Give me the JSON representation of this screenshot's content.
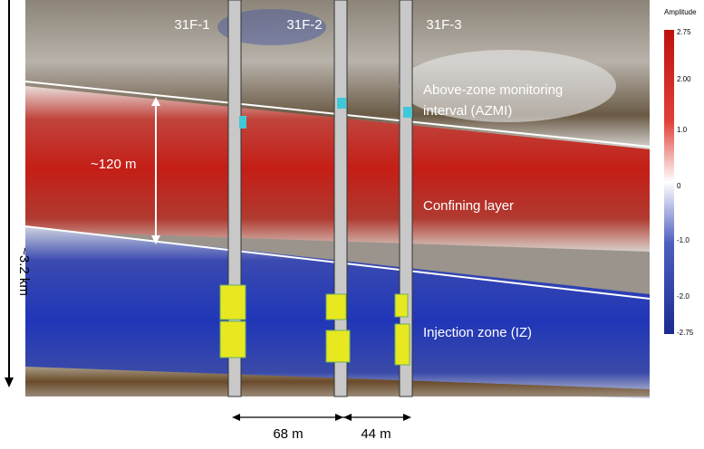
{
  "wells": [
    "31F-1",
    "31F-2",
    "31F-3"
  ],
  "annotations": {
    "azmi": [
      "Above-zone monitoring",
      "interval (AZMI)"
    ],
    "thickness": "~120 m",
    "confining": "Confining layer",
    "injection": "Injection zone (IZ)",
    "depth": "~3.2 km"
  },
  "spacing": [
    "68 m",
    "44 m"
  ],
  "colorbar": {
    "title": "Amplitude",
    "ticks": [
      "2.75",
      "2.00",
      "1.0",
      "0",
      "-1.0",
      "-2.0",
      "-2.75"
    ]
  }
}
